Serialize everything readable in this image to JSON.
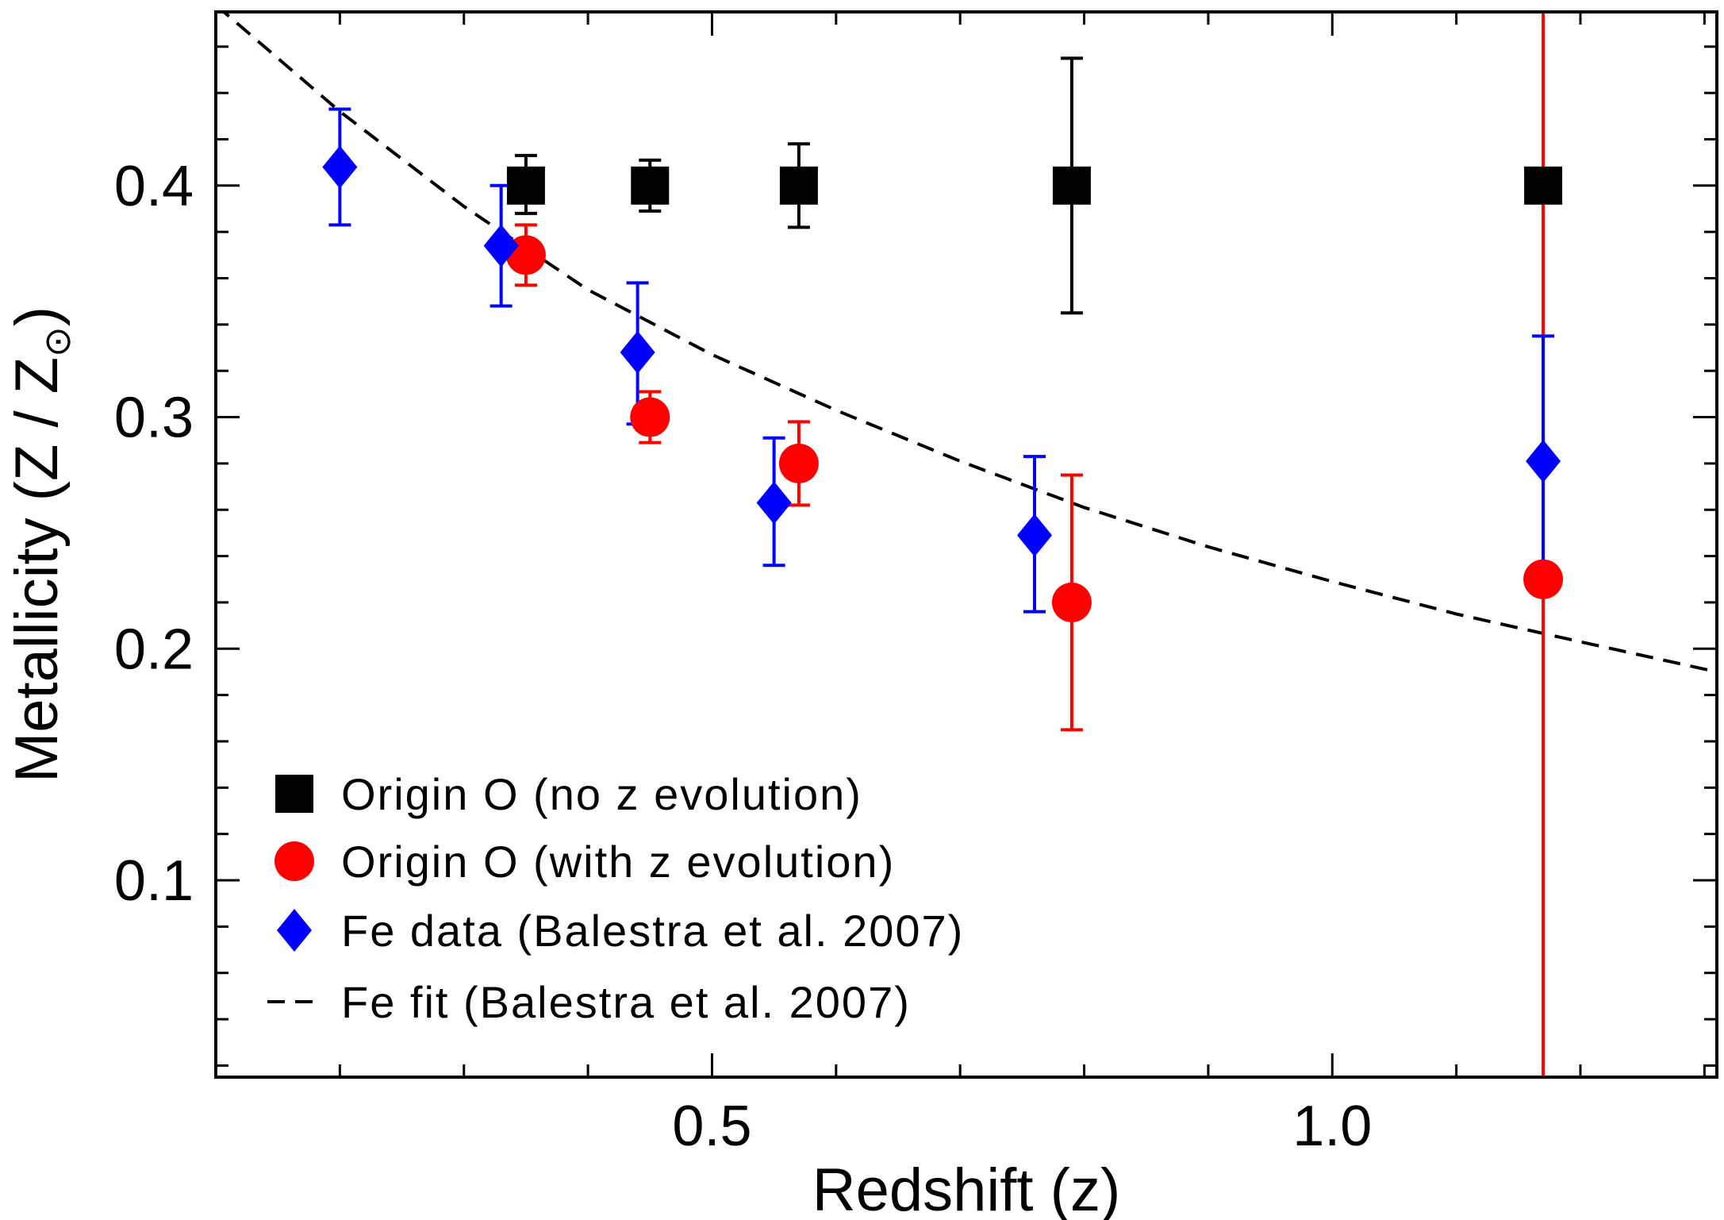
{
  "chart_data": {
    "type": "scatter",
    "xlabel": "Redshift (z)",
    "ylabel": "Metallicity (Z / Z",
    "ylabel_subscript": "⊙",
    "ylabel_close": ")",
    "xlim": [
      0.1,
      1.31
    ],
    "ylim": [
      0.015,
      0.475
    ],
    "x_ticks": [
      {
        "value": 0.5,
        "label": "0.5"
      },
      {
        "value": 1.0,
        "label": "1.0"
      }
    ],
    "x_minor_ticks": [
      0.2,
      0.3,
      0.4,
      0.6,
      0.7,
      0.8,
      0.9,
      1.1,
      1.2,
      1.3
    ],
    "y_ticks": [
      {
        "value": 0.1,
        "label": "0.1"
      },
      {
        "value": 0.2,
        "label": "0.2"
      },
      {
        "value": 0.3,
        "label": "0.3"
      },
      {
        "value": 0.4,
        "label": "0.4"
      }
    ],
    "y_minor_ticks": [
      0.02,
      0.04,
      0.06,
      0.08,
      0.12,
      0.14,
      0.16,
      0.18,
      0.22,
      0.24,
      0.26,
      0.28,
      0.32,
      0.34,
      0.36,
      0.38,
      0.42,
      0.44,
      0.46
    ],
    "legend_position": "bottom-left",
    "series": [
      {
        "name": "Origin O (no z evolution)",
        "marker": "square",
        "color": "#000000",
        "points": [
          {
            "x": 0.35,
            "y": 0.4,
            "lo": 0.388,
            "hi": 0.413
          },
          {
            "x": 0.45,
            "y": 0.4,
            "lo": 0.389,
            "hi": 0.411
          },
          {
            "x": 0.57,
            "y": 0.4,
            "lo": 0.382,
            "hi": 0.418
          },
          {
            "x": 0.79,
            "y": 0.4,
            "lo": 0.345,
            "hi": 0.455
          },
          {
            "x": 1.17,
            "y": 0.4,
            "lo": 0.399,
            "hi": 0.401
          }
        ]
      },
      {
        "name": "Origin O (with z evolution)",
        "marker": "circle",
        "color": "#ff0000",
        "points": [
          {
            "x": 0.35,
            "y": 0.37,
            "lo": 0.357,
            "hi": 0.383
          },
          {
            "x": 0.45,
            "y": 0.3,
            "lo": 0.289,
            "hi": 0.311
          },
          {
            "x": 0.57,
            "y": 0.28,
            "lo": 0.262,
            "hi": 0.298
          },
          {
            "x": 0.79,
            "y": 0.22,
            "lo": 0.165,
            "hi": 0.275
          },
          {
            "x": 1.17,
            "y": 0.23,
            "lo": 0.015,
            "hi": 0.475
          }
        ]
      },
      {
        "name": "Fe data (Balestra et al. 2007)",
        "marker": "diamond",
        "color": "#0000ff",
        "points": [
          {
            "x": 0.2,
            "y": 0.408,
            "lo": 0.383,
            "hi": 0.433
          },
          {
            "x": 0.33,
            "y": 0.374,
            "lo": 0.348,
            "hi": 0.4
          },
          {
            "x": 0.44,
            "y": 0.328,
            "lo": 0.297,
            "hi": 0.358
          },
          {
            "x": 0.55,
            "y": 0.263,
            "lo": 0.236,
            "hi": 0.291
          },
          {
            "x": 0.76,
            "y": 0.249,
            "lo": 0.216,
            "hi": 0.283
          },
          {
            "x": 1.17,
            "y": 0.281,
            "lo": 0.228,
            "hi": 0.335
          }
        ]
      },
      {
        "name": "Fe fit (Balestra et al. 2007)",
        "marker": "dashed-line",
        "color": "#000000",
        "points": [
          {
            "x": 0.1,
            "y": 0.478
          },
          {
            "x": 0.2,
            "y": 0.432
          },
          {
            "x": 0.3,
            "y": 0.391
          },
          {
            "x": 0.4,
            "y": 0.355
          },
          {
            "x": 0.5,
            "y": 0.327
          },
          {
            "x": 0.6,
            "y": 0.303
          },
          {
            "x": 0.7,
            "y": 0.281
          },
          {
            "x": 0.8,
            "y": 0.261
          },
          {
            "x": 0.9,
            "y": 0.244
          },
          {
            "x": 1.0,
            "y": 0.229
          },
          {
            "x": 1.1,
            "y": 0.215
          },
          {
            "x": 1.2,
            "y": 0.203
          },
          {
            "x": 1.31,
            "y": 0.19
          }
        ]
      }
    ]
  }
}
